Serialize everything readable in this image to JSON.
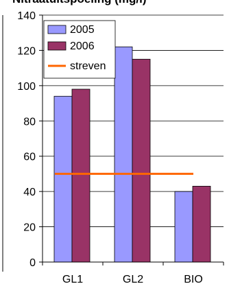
{
  "chart_data": {
    "type": "bar",
    "title": "Nitraatuitspoeling (mg/l)",
    "categories": [
      "GL1",
      "GL2",
      "BIO"
    ],
    "series": [
      {
        "name": "2005",
        "values": [
          94,
          122,
          40
        ],
        "color": "#9999FF"
      },
      {
        "name": "2006",
        "values": [
          98,
          115,
          43
        ],
        "color": "#993366"
      }
    ],
    "reference_line": {
      "name": "streven",
      "value": 50,
      "color": "#FF6600"
    },
    "ylim": [
      0,
      140
    ],
    "yticks": [
      0,
      20,
      40,
      60,
      80,
      100,
      120,
      140
    ],
    "xlabel": "",
    "ylabel": "",
    "grid": true,
    "legend": "top-left"
  }
}
